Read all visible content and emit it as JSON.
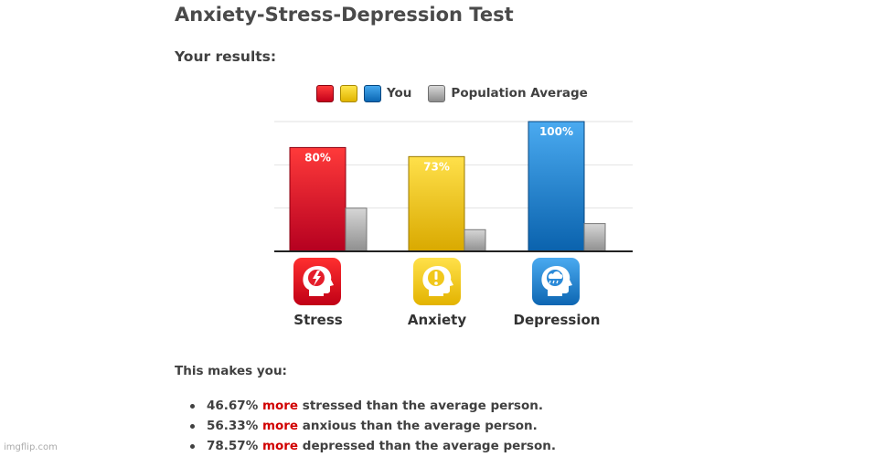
{
  "page": {
    "title": "Anxiety-Stress-Depression Test",
    "subtitle": "Your results:"
  },
  "legend": {
    "you_label": "You",
    "population_label": "Population Average"
  },
  "chart_data": {
    "type": "bar",
    "categories": [
      "Stress",
      "Anxiety",
      "Depression"
    ],
    "series": [
      {
        "name": "You",
        "values": [
          80,
          73,
          100
        ],
        "labels": [
          "80%",
          "73%",
          "100%"
        ]
      },
      {
        "name": "Population Average",
        "values": [
          33.3,
          16.7,
          21.4
        ]
      }
    ],
    "ylim": [
      0,
      100
    ],
    "grid": true,
    "legend_position": "top-center",
    "colors": {
      "Stress": "#e21a2c",
      "Anxiety": "#f1c81c",
      "Depression": "#2b8ad8",
      "Population Average": "#b5b5b5"
    }
  },
  "icons": [
    {
      "category": "Stress",
      "icon": "stress-head-icon",
      "color": "#e21a2c"
    },
    {
      "category": "Anxiety",
      "icon": "anxiety-head-icon",
      "color": "#f1c81c"
    },
    {
      "category": "Depression",
      "icon": "depression-head-icon",
      "color": "#2b8ad8"
    }
  ],
  "summary": {
    "heading": "This makes you:",
    "items": [
      {
        "value": "46.67%",
        "keyword": "more",
        "rest": "stressed than the average person."
      },
      {
        "value": "56.33%",
        "keyword": "more",
        "rest": "anxious than the average person."
      },
      {
        "value": "78.57%",
        "keyword": "more",
        "rest": "depressed than the average person."
      }
    ],
    "keyword_color": "#d10000"
  },
  "watermark": "imgflip.com"
}
